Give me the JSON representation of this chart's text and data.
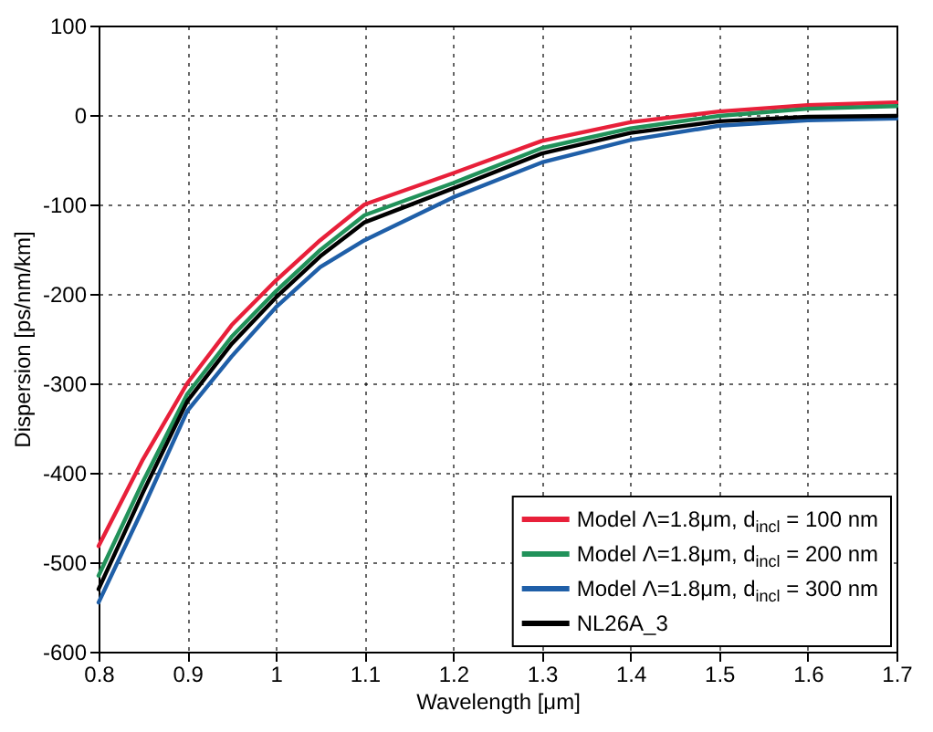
{
  "chart_data": {
    "type": "line",
    "xlabel": "Wavelength [μm]",
    "ylabel": "Dispersion [ps/nm/km]",
    "x": [
      0.8,
      0.85,
      0.9,
      0.95,
      1.0,
      1.05,
      1.1,
      1.2,
      1.3,
      1.4,
      1.5,
      1.6,
      1.7
    ],
    "series": [
      {
        "name": "Model Λ=1.8μm, d$_{incl}$ = 100 nm",
        "color": "#e8203a",
        "values": [
          -482,
          -385,
          -300,
          -235,
          -185,
          -140,
          -100,
          -65,
          -29,
          -8,
          4,
          11,
          14
        ]
      },
      {
        "name": "Model Λ=1.8μm, d$_{incl}$ = 200 nm",
        "color": "#21925a",
        "values": [
          -515,
          -410,
          -312,
          -248,
          -197,
          -151,
          -112,
          -76,
          -37,
          -15,
          -1,
          7,
          10
        ]
      },
      {
        "name": "Model Λ=1.8μm, d$_{incl}$ = 300 nm",
        "color": "#1f5fa8",
        "values": [
          -545,
          -440,
          -331,
          -270,
          -215,
          -170,
          -140,
          -92,
          -53,
          -28,
          -12,
          -6,
          -4
        ]
      },
      {
        "name": "NL26A_3",
        "color": "#000000",
        "values": [
          -530,
          -422,
          -320,
          -256,
          -204,
          -158,
          -120,
          -82,
          -43,
          -20,
          -7,
          -2,
          -1
        ]
      }
    ],
    "xlim": [
      0.8,
      1.7
    ],
    "xticks": [
      0.8,
      0.9,
      1,
      1.1,
      1.2,
      1.3,
      1.4,
      1.5,
      1.6,
      1.7
    ],
    "ylim": [
      -600,
      100
    ],
    "yticks": [
      -600,
      -500,
      -400,
      -300,
      -200,
      -100,
      0,
      100
    ],
    "grid": true,
    "legend": "bottom right",
    "marker": "none",
    "line_style": "solid"
  }
}
